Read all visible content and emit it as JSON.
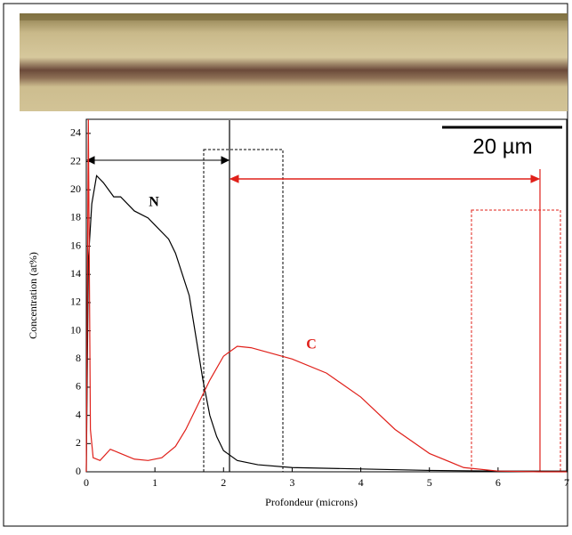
{
  "chart_data": {
    "type": "line",
    "x_label": "Profondeur (microns)",
    "y_label": "Concentration (at%)",
    "scale_bar_label": "20 µm",
    "xlim": [
      0,
      7
    ],
    "xticks": [
      0,
      1,
      2,
      3,
      4,
      5,
      6,
      7
    ],
    "ylim": [
      0,
      25
    ],
    "yticks": [
      0,
      2,
      4,
      6,
      8,
      10,
      12,
      14,
      16,
      18,
      20,
      22,
      24
    ],
    "series": [
      {
        "name": "N",
        "color": "#000000",
        "x": [
          0,
          0.03,
          0.08,
          0.15,
          0.25,
          0.4,
          0.5,
          0.7,
          0.9,
          1.0,
          1.2,
          1.3,
          1.4,
          1.5,
          1.6,
          1.7,
          1.8,
          1.9,
          2.0,
          2.2,
          2.5,
          3.0,
          4.0,
          5.0,
          6.0,
          7.0
        ],
        "values": [
          0,
          15,
          19,
          21,
          20.5,
          19.5,
          19.5,
          18.5,
          18,
          17.5,
          16.5,
          15.5,
          14,
          12.5,
          9.5,
          6.5,
          4,
          2.5,
          1.5,
          0.8,
          0.5,
          0.3,
          0.2,
          0.1,
          0.05,
          0.05
        ]
      },
      {
        "name": "C",
        "color": "#e0201a",
        "x": [
          0,
          0.03,
          0.06,
          0.1,
          0.2,
          0.35,
          0.5,
          0.7,
          0.9,
          1.1,
          1.3,
          1.45,
          1.6,
          1.8,
          2.0,
          2.2,
          2.4,
          2.7,
          3.0,
          3.5,
          4.0,
          4.5,
          5.0,
          5.5,
          6.0,
          6.6,
          7.0
        ],
        "values": [
          0,
          25,
          3,
          1,
          0.8,
          1.6,
          1.3,
          0.9,
          0.8,
          1,
          1.8,
          3,
          4.5,
          6.5,
          8.2,
          8.9,
          8.8,
          8.4,
          8,
          7,
          5.3,
          3,
          1.3,
          0.3,
          0.05,
          0,
          0
        ]
      }
    ]
  }
}
